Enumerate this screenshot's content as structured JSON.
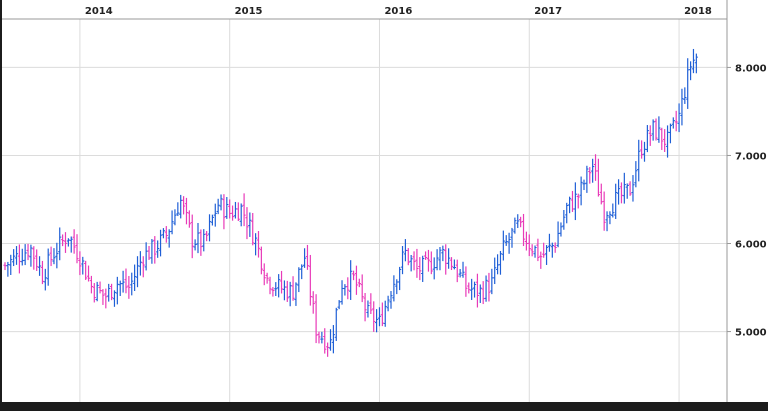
{
  "chart_data": {
    "type": "bar",
    "subtype": "ohlc",
    "title": "",
    "xlabel": "",
    "ylabel": "",
    "x_ticks": [
      "2014",
      "2015",
      "2016",
      "2017",
      "2018"
    ],
    "y_ticks": [
      "5.000",
      "6.000",
      "7.000",
      "8.000"
    ],
    "ylim": [
      4.2,
      8.55
    ],
    "x_range": [
      2013.48,
      2018.32
    ],
    "grid": true,
    "up_color": "#1f5fd6",
    "down_color": "#e83ab8",
    "series": [
      {
        "values": [
          [
            2013.5,
            5.75
          ],
          [
            2013.58,
            5.85
          ],
          [
            2013.67,
            5.95
          ],
          [
            2013.75,
            5.65
          ],
          [
            2013.83,
            5.9
          ],
          [
            2013.92,
            6.1
          ],
          [
            2014.0,
            5.85
          ],
          [
            2014.08,
            5.5
          ],
          [
            2014.17,
            5.4
          ],
          [
            2014.25,
            5.55
          ],
          [
            2014.33,
            5.5
          ],
          [
            2014.42,
            5.85
          ],
          [
            2014.5,
            5.95
          ],
          [
            2014.58,
            6.1
          ],
          [
            2014.67,
            6.5
          ],
          [
            2014.75,
            6.05
          ],
          [
            2014.83,
            6.0
          ],
          [
            2014.92,
            6.45
          ],
          [
            2015.0,
            6.35
          ],
          [
            2015.08,
            6.4
          ],
          [
            2015.17,
            6.05
          ],
          [
            2015.25,
            5.6
          ],
          [
            2015.33,
            5.5
          ],
          [
            2015.42,
            5.45
          ],
          [
            2015.5,
            5.85
          ],
          [
            2015.58,
            5.0
          ],
          [
            2015.67,
            4.85
          ],
          [
            2015.75,
            5.55
          ],
          [
            2015.83,
            5.6
          ],
          [
            2015.92,
            5.2
          ],
          [
            2016.0,
            5.1
          ],
          [
            2016.08,
            5.5
          ],
          [
            2016.17,
            5.9
          ],
          [
            2016.25,
            5.7
          ],
          [
            2016.33,
            5.75
          ],
          [
            2016.42,
            5.9
          ],
          [
            2016.5,
            5.75
          ],
          [
            2016.58,
            5.5
          ],
          [
            2016.67,
            5.45
          ],
          [
            2016.75,
            5.55
          ],
          [
            2016.83,
            5.95
          ],
          [
            2016.92,
            6.2
          ],
          [
            2017.0,
            6.0
          ],
          [
            2017.08,
            5.85
          ],
          [
            2017.17,
            6.0
          ],
          [
            2017.25,
            6.4
          ],
          [
            2017.33,
            6.55
          ],
          [
            2017.42,
            6.9
          ],
          [
            2017.5,
            6.35
          ],
          [
            2017.58,
            6.5
          ],
          [
            2017.67,
            6.6
          ],
          [
            2017.75,
            7.1
          ],
          [
            2017.83,
            7.3
          ],
          [
            2017.92,
            7.15
          ],
          [
            2018.0,
            7.45
          ],
          [
            2018.08,
            8.05
          ],
          [
            2018.13,
            8.15
          ]
        ]
      }
    ]
  }
}
